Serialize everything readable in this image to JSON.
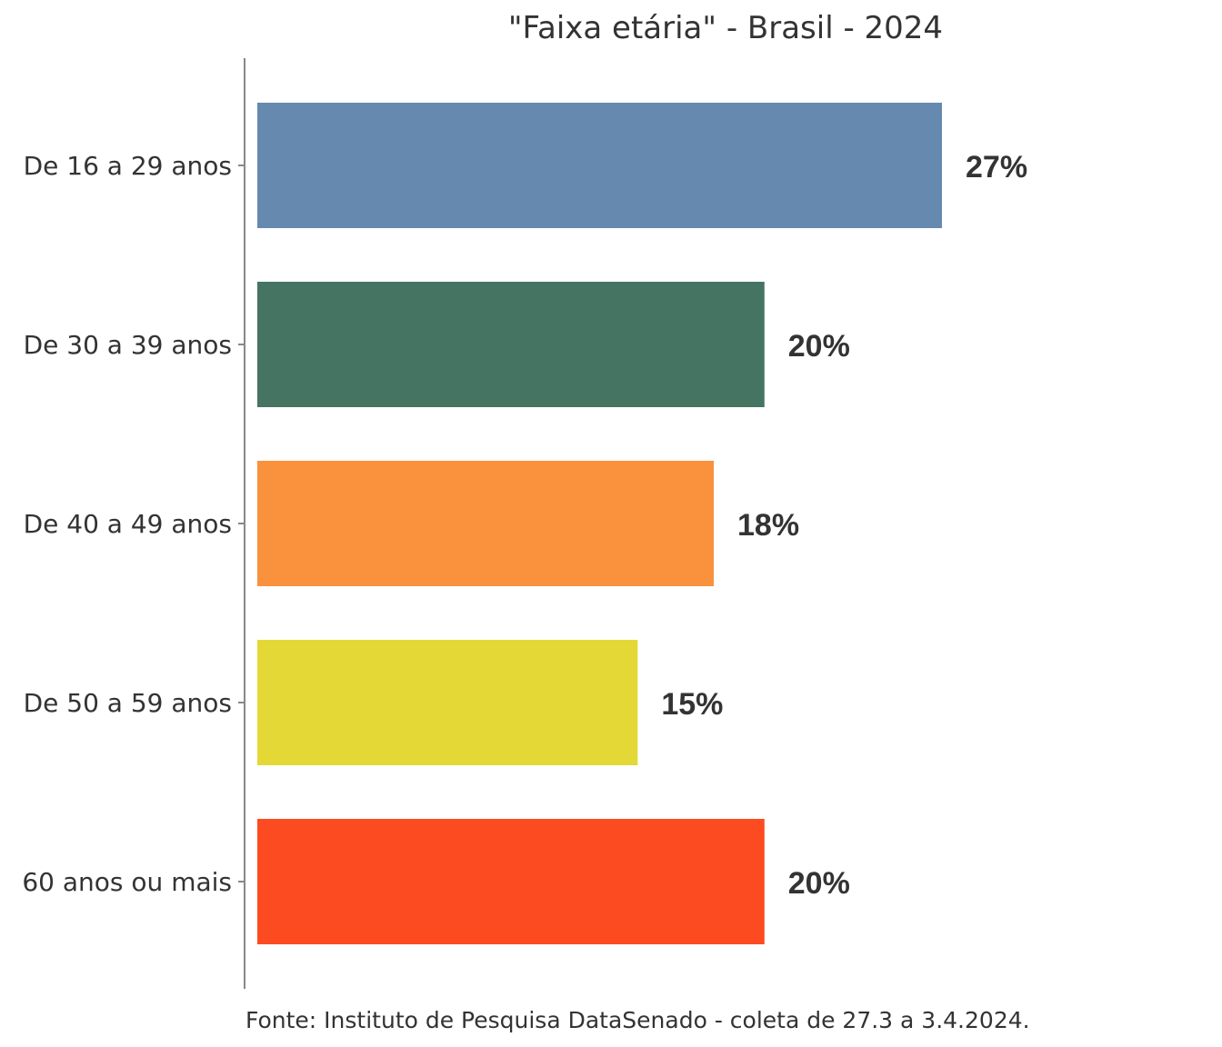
{
  "chart_data": {
    "type": "bar",
    "orientation": "horizontal",
    "title": "\"Faixa etária\" - Brasil - 2024",
    "categories": [
      "De 16 a 29 anos",
      "De 30 a 39 anos",
      "De 40 a 49 anos",
      "De 50 a 59 anos",
      "60 anos ou mais"
    ],
    "values": [
      27,
      20,
      18,
      15,
      20
    ],
    "value_labels": [
      "27%",
      "20%",
      "18%",
      "15%",
      "20%"
    ],
    "colors": [
      "#6689B0",
      "#457462",
      "#F9913D",
      "#E4D836",
      "#FD4B21"
    ],
    "xlim": [
      0,
      30
    ],
    "grid": false,
    "caption": "Fonte: Instituto de Pesquisa DataSenado - coleta de 27.3 a 3.4.2024."
  }
}
